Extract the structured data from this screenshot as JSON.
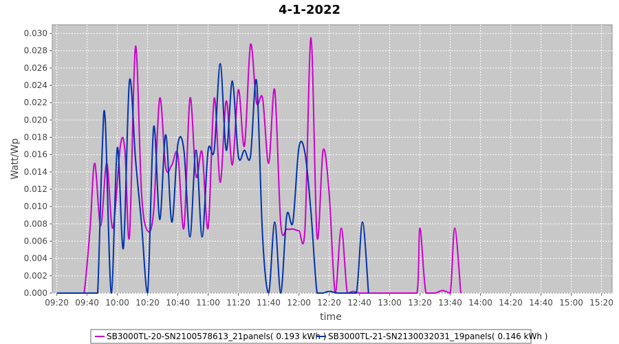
{
  "chart_data": {
    "type": "line",
    "title": "4-1-2022",
    "xlabel": "time",
    "ylabel": "Watt/Wp",
    "xlim": [
      "09:17",
      "15:27"
    ],
    "ylim": [
      0,
      0.031
    ],
    "grid": true,
    "legend_position": "bottom",
    "x_ticks": [
      "09:20",
      "09:40",
      "10:00",
      "10:20",
      "10:40",
      "11:00",
      "11:20",
      "11:40",
      "12:00",
      "12:20",
      "12:40",
      "13:00",
      "13:20",
      "13:40",
      "14:00",
      "14:20",
      "14:40",
      "15:00",
      "15:20"
    ],
    "y_ticks": [
      "0.000",
      "0.002",
      "0.004",
      "0.006",
      "0.008",
      "0.010",
      "0.012",
      "0.014",
      "0.016",
      "0.018",
      "0.020",
      "0.022",
      "0.024",
      "0.026",
      "0.028",
      "0.030"
    ],
    "series": [
      {
        "name": "SB3000TL-20-SN2100578613_21panels( 0.193 kWh )",
        "color": "#cc00cc",
        "points": [
          [
            "09:20",
            0.0
          ],
          [
            "09:35",
            0.0
          ],
          [
            "09:38",
            0.0
          ],
          [
            "09:42",
            0.0075
          ],
          [
            "09:45",
            0.015
          ],
          [
            "09:49",
            0.0078
          ],
          [
            "09:53",
            0.015
          ],
          [
            "09:57",
            0.0075
          ],
          [
            "10:02",
            0.017
          ],
          [
            "10:05",
            0.0165
          ],
          [
            "10:08",
            0.0065
          ],
          [
            "10:12",
            0.0285
          ],
          [
            "10:16",
            0.0115
          ],
          [
            "10:20",
            0.0072
          ],
          [
            "10:24",
            0.0095
          ],
          [
            "10:28",
            0.0225
          ],
          [
            "10:32",
            0.0145
          ],
          [
            "10:36",
            0.0148
          ],
          [
            "10:40",
            0.016
          ],
          [
            "10:44",
            0.0075
          ],
          [
            "10:48",
            0.0225
          ],
          [
            "10:52",
            0.0135
          ],
          [
            "10:56",
            0.0163
          ],
          [
            "11:00",
            0.0075
          ],
          [
            "11:04",
            0.0225
          ],
          [
            "11:08",
            0.0128
          ],
          [
            "11:12",
            0.0222
          ],
          [
            "11:16",
            0.0148
          ],
          [
            "11:20",
            0.0235
          ],
          [
            "11:24",
            0.017
          ],
          [
            "11:28",
            0.0287
          ],
          [
            "11:32",
            0.022
          ],
          [
            "11:36",
            0.0225
          ],
          [
            "11:40",
            0.015
          ],
          [
            "11:44",
            0.0235
          ],
          [
            "11:48",
            0.008
          ],
          [
            "11:52",
            0.0074
          ],
          [
            "11:56",
            0.0074
          ],
          [
            "12:00",
            0.0072
          ],
          [
            "12:04",
            0.0074
          ],
          [
            "12:08",
            0.0295
          ],
          [
            "12:12",
            0.0065
          ],
          [
            "12:16",
            0.0165
          ],
          [
            "12:20",
            0.0115
          ],
          [
            "12:24",
            0.0
          ],
          [
            "12:28",
            0.0075
          ],
          [
            "12:32",
            0.0
          ],
          [
            "12:36",
            0.0002
          ],
          [
            "12:40",
            0.0
          ],
          [
            "12:50",
            0.0
          ],
          [
            "13:00",
            0.0
          ],
          [
            "13:10",
            0.0
          ],
          [
            "13:18",
            0.0
          ],
          [
            "13:20",
            0.0075
          ],
          [
            "13:24",
            0.0
          ],
          [
            "13:30",
            0.0
          ],
          [
            "13:35",
            0.0003
          ],
          [
            "13:40",
            0.0
          ],
          [
            "13:43",
            0.0075
          ],
          [
            "13:47",
            0.0
          ]
        ]
      },
      {
        "name": "SB3000TL-21-SN2130032031_19panels( 0.146 kWh )",
        "color": "#0033aa",
        "points": [
          [
            "09:20",
            0.0
          ],
          [
            "09:35",
            0.0
          ],
          [
            "09:45",
            0.0
          ],
          [
            "09:47",
            0.0
          ],
          [
            "09:50",
            0.0165
          ],
          [
            "09:52",
            0.02
          ],
          [
            "09:56",
            0.0
          ],
          [
            "10:00",
            0.0168
          ],
          [
            "10:04",
            0.0052
          ],
          [
            "10:08",
            0.0245
          ],
          [
            "10:12",
            0.0155
          ],
          [
            "10:16",
            0.008
          ],
          [
            "10:20",
            0.0
          ],
          [
            "10:24",
            0.0192
          ],
          [
            "10:28",
            0.0085
          ],
          [
            "10:32",
            0.0183
          ],
          [
            "10:36",
            0.0082
          ],
          [
            "10:40",
            0.0172
          ],
          [
            "10:44",
            0.0165
          ],
          [
            "10:48",
            0.0065
          ],
          [
            "10:52",
            0.0165
          ],
          [
            "10:56",
            0.0065
          ],
          [
            "11:00",
            0.0165
          ],
          [
            "11:04",
            0.0165
          ],
          [
            "11:08",
            0.0265
          ],
          [
            "11:12",
            0.0165
          ],
          [
            "11:16",
            0.0245
          ],
          [
            "11:20",
            0.0158
          ],
          [
            "11:24",
            0.0165
          ],
          [
            "11:28",
            0.0158
          ],
          [
            "11:32",
            0.0245
          ],
          [
            "11:36",
            0.0065
          ],
          [
            "11:40",
            0.0
          ],
          [
            "11:44",
            0.0082
          ],
          [
            "11:48",
            0.0
          ],
          [
            "11:52",
            0.009
          ],
          [
            "11:56",
            0.0082
          ],
          [
            "12:00",
            0.0168
          ],
          [
            "12:04",
            0.0162
          ],
          [
            "12:08",
            0.0093
          ],
          [
            "12:12",
            0.0
          ],
          [
            "12:16",
            0.0
          ],
          [
            "12:20",
            0.0002
          ],
          [
            "12:26",
            0.0
          ],
          [
            "12:32",
            0.0
          ],
          [
            "12:38",
            0.0
          ],
          [
            "12:42",
            0.0082
          ],
          [
            "12:46",
            0.0
          ]
        ]
      }
    ]
  }
}
